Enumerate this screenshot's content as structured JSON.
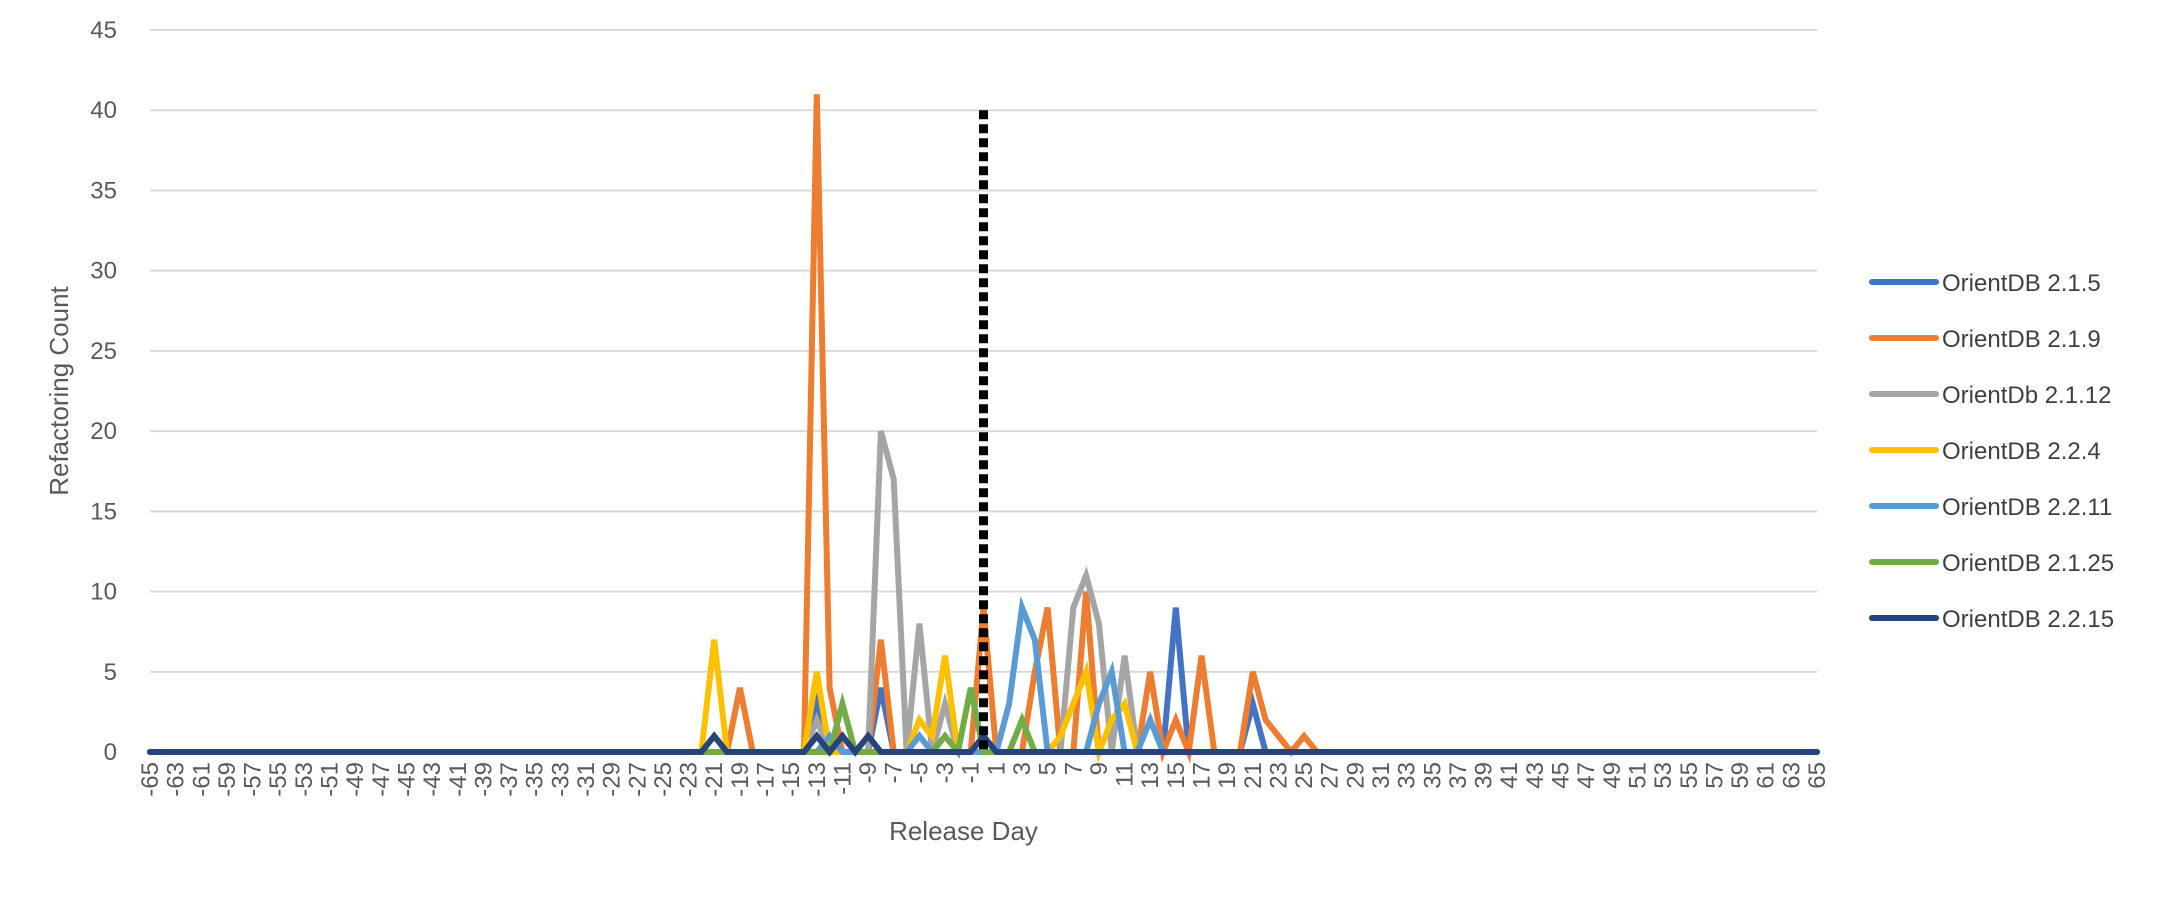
{
  "chart_data": {
    "type": "line",
    "title": "",
    "xlabel": "Release Day",
    "ylabel": "Refactoring Count",
    "xlim": [
      -65,
      65
    ],
    "ylim": [
      0,
      45
    ],
    "y_ticks": [
      0,
      5,
      10,
      15,
      20,
      25,
      30,
      35,
      40,
      45
    ],
    "x_tick_labels": [
      "-65",
      "-63",
      "-61",
      "-59",
      "-57",
      "-55",
      "-53",
      "-51",
      "-49",
      "-47",
      "-45",
      "-43",
      "-41",
      "-39",
      "-37",
      "-35",
      "-33",
      "-31",
      "-29",
      "-27",
      "-25",
      "-23",
      "-21",
      "-19",
      "-17",
      "-15",
      "-13",
      "-11",
      "-9",
      "-7",
      "-5",
      "-3",
      "-1",
      "1",
      "3",
      "5",
      "7",
      "9",
      "11",
      "13",
      "15",
      "17",
      "19",
      "21",
      "23",
      "25",
      "27",
      "29",
      "31",
      "33",
      "35",
      "37",
      "39",
      "41",
      "43",
      "45",
      "47",
      "49",
      "51",
      "53",
      "55",
      "57",
      "59",
      "61",
      "63",
      "65"
    ],
    "grid": true,
    "legend_position": "right",
    "release_marker": {
      "x": 0,
      "y_top": 40,
      "style": "dotted",
      "color": "#000000"
    },
    "series": [
      {
        "name": "OrientDB 2.1.5",
        "color": "#4472C4",
        "points": [
          [
            -65,
            0
          ],
          [
            -14,
            0
          ],
          [
            -13,
            3
          ],
          [
            -12,
            0
          ],
          [
            -9,
            0
          ],
          [
            -8,
            4
          ],
          [
            -7,
            0
          ],
          [
            14,
            0
          ],
          [
            15,
            9
          ],
          [
            16,
            0
          ],
          [
            20,
            0
          ],
          [
            21,
            3
          ],
          [
            22,
            0
          ],
          [
            65,
            0
          ]
        ]
      },
      {
        "name": "OrientDB 2.1.9",
        "color": "#ED7D31",
        "points": [
          [
            -65,
            0
          ],
          [
            -20,
            0
          ],
          [
            -19,
            4
          ],
          [
            -18,
            0
          ],
          [
            -14,
            0
          ],
          [
            -13,
            41
          ],
          [
            -12,
            4
          ],
          [
            -11,
            0
          ],
          [
            -9,
            0
          ],
          [
            -8,
            7
          ],
          [
            -7,
            0
          ],
          [
            -1,
            0
          ],
          [
            0,
            9
          ],
          [
            1,
            0
          ],
          [
            3,
            0
          ],
          [
            4,
            5
          ],
          [
            5,
            9
          ],
          [
            6,
            0
          ],
          [
            7,
            0
          ],
          [
            8,
            10
          ],
          [
            9,
            0
          ],
          [
            12,
            0
          ],
          [
            13,
            5
          ],
          [
            14,
            0
          ],
          [
            15,
            2
          ],
          [
            16,
            0
          ],
          [
            17,
            6
          ],
          [
            18,
            0
          ],
          [
            20,
            0
          ],
          [
            21,
            5
          ],
          [
            22,
            2
          ],
          [
            23,
            1
          ],
          [
            24,
            0
          ],
          [
            25,
            1
          ],
          [
            26,
            0
          ],
          [
            65,
            0
          ]
        ]
      },
      {
        "name": "OrientDb 2.1.12",
        "color": "#A5A5A5",
        "points": [
          [
            -65,
            0
          ],
          [
            -14,
            0
          ],
          [
            -13,
            2
          ],
          [
            -12,
            0
          ],
          [
            -9,
            0
          ],
          [
            -8,
            20
          ],
          [
            -7,
            17
          ],
          [
            -6,
            0
          ],
          [
            -5,
            8
          ],
          [
            -4,
            0
          ],
          [
            -3,
            3
          ],
          [
            -2,
            0
          ],
          [
            6,
            0
          ],
          [
            7,
            9
          ],
          [
            8,
            11
          ],
          [
            9,
            8
          ],
          [
            10,
            0
          ],
          [
            11,
            6
          ],
          [
            12,
            0
          ],
          [
            65,
            0
          ]
        ]
      },
      {
        "name": "OrientDB 2.2.4",
        "color": "#FFC000",
        "points": [
          [
            -65,
            0
          ],
          [
            -22,
            0
          ],
          [
            -21,
            7
          ],
          [
            -20,
            0
          ],
          [
            -14,
            0
          ],
          [
            -13,
            5
          ],
          [
            -12,
            0
          ],
          [
            -6,
            0
          ],
          [
            -5,
            2
          ],
          [
            -4,
            1
          ],
          [
            -3,
            6
          ],
          [
            -2,
            0
          ],
          [
            5,
            0
          ],
          [
            6,
            1
          ],
          [
            7,
            3
          ],
          [
            8,
            5
          ],
          [
            9,
            0
          ],
          [
            10,
            2
          ],
          [
            11,
            3
          ],
          [
            12,
            0
          ],
          [
            65,
            0
          ]
        ]
      },
      {
        "name": "OrientDB 2.2.11",
        "color": "#5B9BD5",
        "points": [
          [
            -65,
            0
          ],
          [
            -13,
            0
          ],
          [
            -12,
            1
          ],
          [
            -11,
            0
          ],
          [
            -6,
            0
          ],
          [
            -5,
            1
          ],
          [
            -4,
            0
          ],
          [
            1,
            0
          ],
          [
            2,
            3
          ],
          [
            3,
            9
          ],
          [
            4,
            7
          ],
          [
            5,
            0
          ],
          [
            8,
            0
          ],
          [
            9,
            3
          ],
          [
            10,
            5
          ],
          [
            11,
            0
          ],
          [
            12,
            0
          ],
          [
            13,
            2
          ],
          [
            14,
            0
          ],
          [
            65,
            0
          ]
        ]
      },
      {
        "name": "OrientDB 2.1.25",
        "color": "#70AD47",
        "points": [
          [
            -65,
            0
          ],
          [
            -12,
            0
          ],
          [
            -11,
            3
          ],
          [
            -10,
            0
          ],
          [
            -4,
            0
          ],
          [
            -3,
            1
          ],
          [
            -2,
            0
          ],
          [
            -1,
            4
          ],
          [
            0,
            0
          ],
          [
            2,
            0
          ],
          [
            3,
            2
          ],
          [
            4,
            0
          ],
          [
            65,
            0
          ]
        ]
      },
      {
        "name": "OrientDB 2.2.15",
        "color": "#264478",
        "points": [
          [
            -65,
            0
          ],
          [
            -22,
            0
          ],
          [
            -21,
            1
          ],
          [
            -20,
            0
          ],
          [
            -14,
            0
          ],
          [
            -13,
            1
          ],
          [
            -12,
            0
          ],
          [
            -11,
            1
          ],
          [
            -10,
            0
          ],
          [
            -9,
            1
          ],
          [
            -8,
            0
          ],
          [
            -1,
            0
          ],
          [
            0,
            1
          ],
          [
            1,
            0
          ],
          [
            65,
            0
          ]
        ]
      }
    ]
  }
}
